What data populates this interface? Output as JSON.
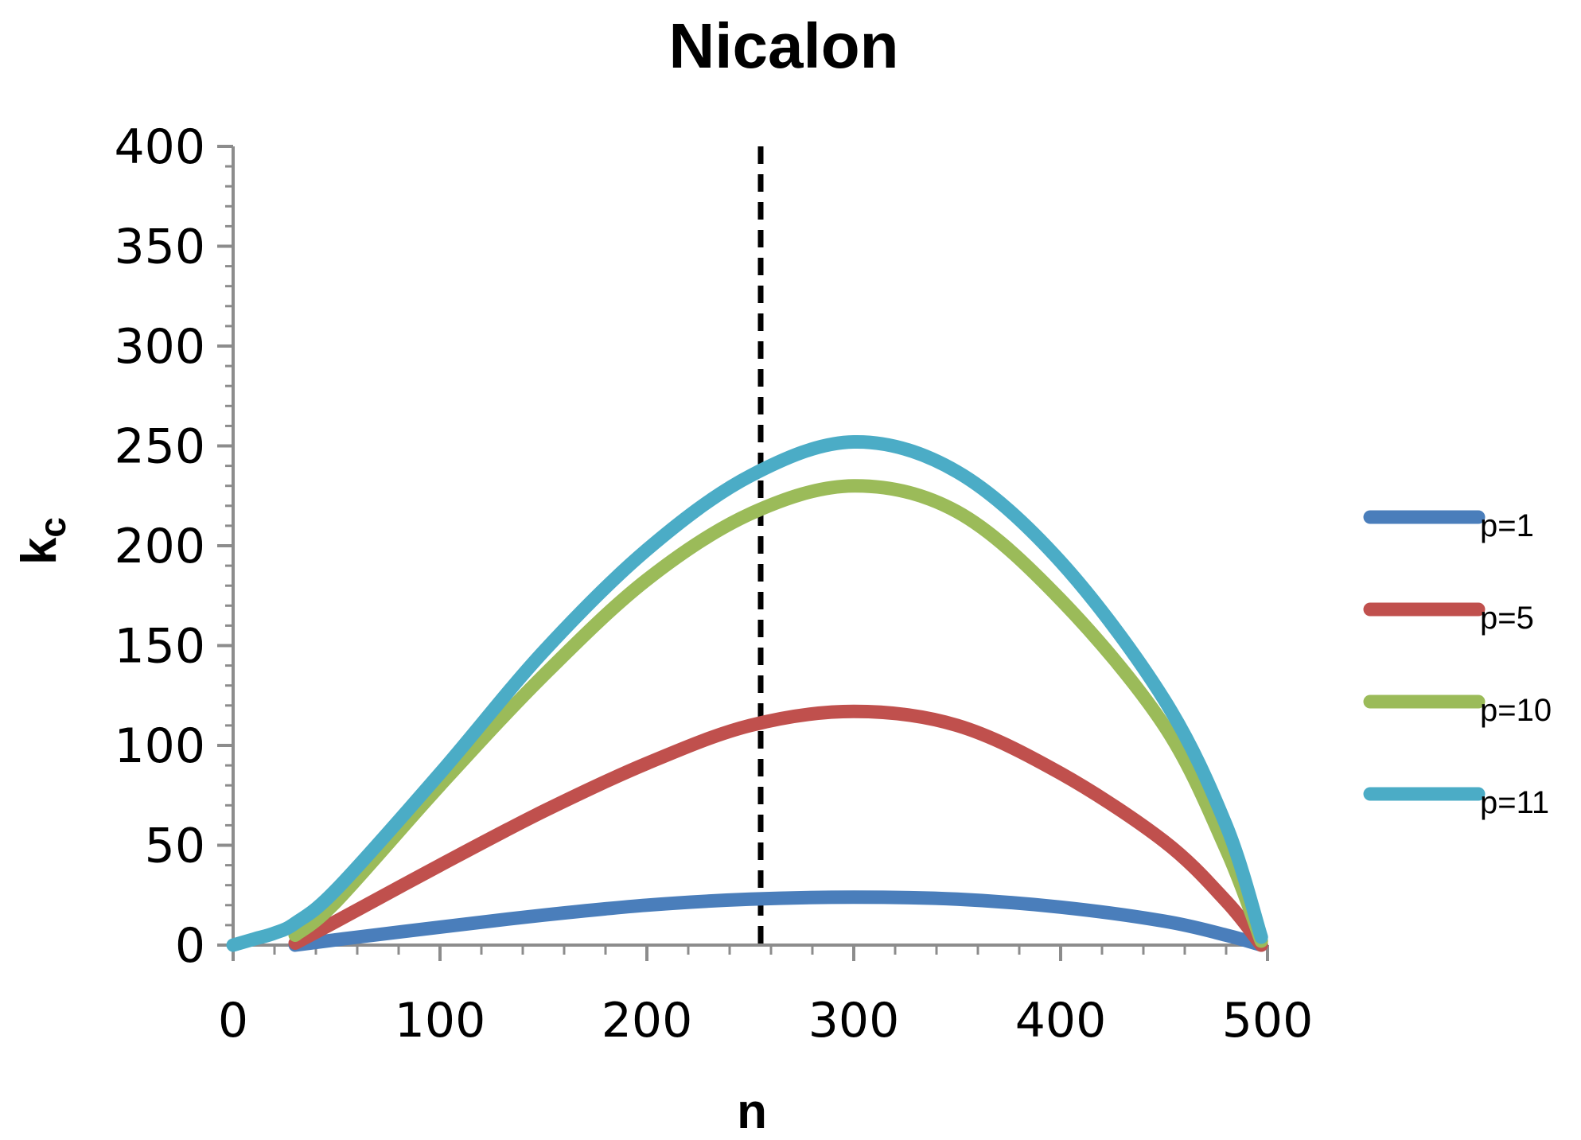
{
  "chart_data": {
    "type": "line",
    "title": "Nicalon",
    "xlabel": "n",
    "ylabel": "k",
    "ylabel_subscript": "c",
    "xlim": [
      0,
      500
    ],
    "ylim": [
      0,
      400
    ],
    "x_ticks": [
      0,
      100,
      200,
      300,
      400,
      500
    ],
    "y_ticks": [
      0,
      50,
      100,
      150,
      200,
      250,
      300,
      350,
      400
    ],
    "x_minor_step": 20,
    "y_minor_step": 10,
    "grid": false,
    "legend_position": "right",
    "vertical_reference_line": {
      "x": 255,
      "style": "dashed",
      "color": "#000000"
    },
    "series": [
      {
        "name": "p=1",
        "color": "#4a7ebb",
        "x": [
          30,
          60,
          100,
          150,
          200,
          250,
          300,
          350,
          400,
          450,
          480,
          497
        ],
        "y": [
          0,
          4,
          9,
          15,
          20,
          23,
          24,
          23,
          19,
          12,
          5,
          0
        ]
      },
      {
        "name": "p=5",
        "color": "#c0504d",
        "x": [
          30,
          50,
          100,
          150,
          200,
          250,
          300,
          350,
          400,
          450,
          480,
          497
        ],
        "y": [
          1,
          12,
          40,
          67,
          91,
          110,
          117,
          110,
          86,
          52,
          22,
          0
        ]
      },
      {
        "name": "p=10",
        "color": "#9bbb59",
        "x": [
          30,
          50,
          100,
          150,
          200,
          250,
          300,
          350,
          400,
          450,
          480,
          497
        ],
        "y": [
          5,
          22,
          80,
          135,
          183,
          216,
          230,
          217,
          173,
          110,
          48,
          2
        ]
      },
      {
        "name": "p=11",
        "color": "#4bacc6",
        "x": [
          0,
          10,
          20,
          30,
          50,
          100,
          150,
          200,
          250,
          300,
          350,
          400,
          450,
          480,
          497
        ],
        "y": [
          0,
          3,
          6,
          11,
          28,
          86,
          147,
          198,
          235,
          252,
          237,
          192,
          123,
          60,
          4
        ]
      }
    ]
  }
}
